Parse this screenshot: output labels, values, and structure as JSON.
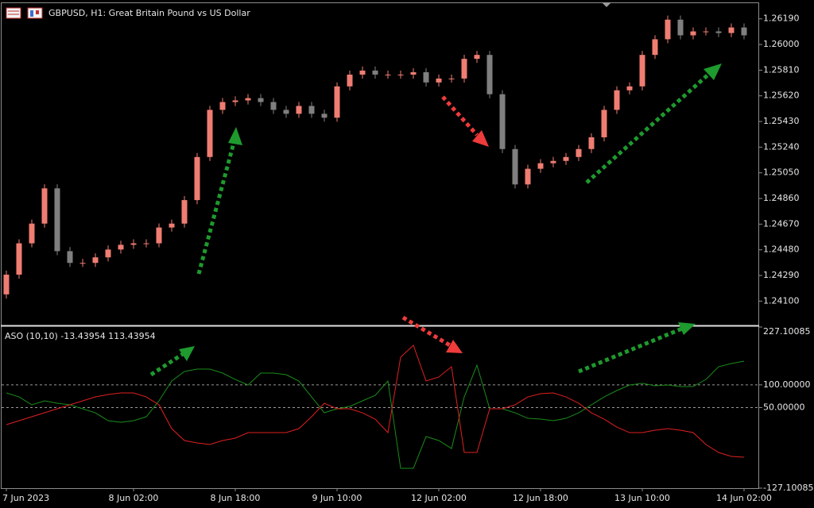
{
  "chart_data": [
    {
      "type": "candlestick",
      "title": "GBPUSD, H1:  Great Britain Pound vs US Dollar",
      "categories": [
        "7 Jun 2023",
        null,
        null,
        null,
        null,
        null,
        null,
        null,
        null,
        null,
        "8 Jun 02:00",
        null,
        null,
        null,
        null,
        null,
        null,
        null,
        "8 Jun 18:00",
        null,
        null,
        null,
        null,
        null,
        null,
        null,
        "9 Jun 10:00",
        null,
        null,
        null,
        null,
        null,
        null,
        null,
        "12 Jun 02:00",
        null,
        null,
        null,
        null,
        null,
        null,
        null,
        "12 Jun 18:00",
        null,
        null,
        null,
        null,
        null,
        null,
        null,
        "13 Jun 10:00",
        null,
        null,
        null,
        null,
        null,
        null,
        null,
        "14 Jun 02:00"
      ],
      "open": [
        1.2415,
        1.24296,
        1.24528,
        1.24674,
        1.24935,
        1.2447,
        1.24383,
        1.24383,
        1.24424,
        1.24482,
        1.24517,
        1.24528,
        1.24528,
        1.24645,
        1.24674,
        1.24848,
        1.25167,
        1.25516,
        1.25574,
        1.25586,
        1.25603,
        1.25574,
        1.25516,
        1.25487,
        1.25545,
        1.25487,
        1.25458,
        1.2569,
        1.25777,
        1.25807,
        1.25777,
        1.25777,
        1.25777,
        1.25795,
        1.25719,
        1.25748,
        1.25748,
        1.25894,
        1.25923,
        1.25632,
        1.25226,
        1.24964,
        1.2508,
        1.25121,
        1.25138,
        1.25167,
        1.25226,
        1.25313,
        1.25516,
        1.25661,
        1.2569,
        1.25923,
        1.26039,
        1.26184,
        1.26068,
        1.26097,
        1.26097,
        1.26085,
        1.26126
      ],
      "high": [
        1.24326,
        1.24558,
        1.24704,
        1.24965,
        1.24965,
        1.245,
        1.24413,
        1.24454,
        1.24512,
        1.24547,
        1.24558,
        1.24558,
        1.24675,
        1.24704,
        1.24878,
        1.25197,
        1.25546,
        1.25604,
        1.25616,
        1.25633,
        1.25633,
        1.25604,
        1.25546,
        1.25575,
        1.25575,
        1.25517,
        1.2572,
        1.25807,
        1.25837,
        1.25837,
        1.25807,
        1.25807,
        1.25825,
        1.25825,
        1.25778,
        1.25778,
        1.25924,
        1.25953,
        1.25953,
        1.25662,
        1.25256,
        1.2511,
        1.25151,
        1.25168,
        1.25197,
        1.25256,
        1.25343,
        1.25546,
        1.25691,
        1.2572,
        1.25953,
        1.26069,
        1.26214,
        1.26214,
        1.26127,
        1.26127,
        1.26127,
        1.26156,
        1.26156
      ],
      "low": [
        1.2412,
        1.24266,
        1.24498,
        1.24644,
        1.2444,
        1.24353,
        1.24353,
        1.24353,
        1.24394,
        1.24452,
        1.24487,
        1.24498,
        1.24498,
        1.24615,
        1.24644,
        1.24818,
        1.25137,
        1.25486,
        1.25544,
        1.25556,
        1.25544,
        1.25486,
        1.25457,
        1.25457,
        1.25457,
        1.25428,
        1.25428,
        1.2566,
        1.25747,
        1.25747,
        1.25747,
        1.25747,
        1.25747,
        1.25689,
        1.25689,
        1.25718,
        1.25718,
        1.25864,
        1.25602,
        1.25196,
        1.24934,
        1.24934,
        1.2505,
        1.25091,
        1.25108,
        1.25137,
        1.25196,
        1.25283,
        1.25486,
        1.25631,
        1.2566,
        1.25893,
        1.26009,
        1.26038,
        1.26038,
        1.26067,
        1.26055,
        1.26055,
        1.26038
      ],
      "close": [
        1.24296,
        1.24528,
        1.24674,
        1.24935,
        1.2447,
        1.24383,
        1.24383,
        1.24424,
        1.24482,
        1.24517,
        1.24528,
        1.24528,
        1.24645,
        1.24674,
        1.24848,
        1.25167,
        1.25516,
        1.25574,
        1.25586,
        1.25603,
        1.25574,
        1.25516,
        1.25487,
        1.25545,
        1.25487,
        1.25458,
        1.2569,
        1.25777,
        1.25807,
        1.25777,
        1.25777,
        1.25777,
        1.25795,
        1.25719,
        1.25748,
        1.25748,
        1.25894,
        1.25923,
        1.25632,
        1.25226,
        1.24964,
        1.2508,
        1.25121,
        1.25138,
        1.25167,
        1.25226,
        1.25313,
        1.25516,
        1.25661,
        1.2569,
        1.25923,
        1.26039,
        1.26184,
        1.26068,
        1.26097,
        1.26097,
        1.26085,
        1.26126,
        1.26068
      ],
      "up_color": "#ef7d72",
      "down_color": "#7f7f7f",
      "ylim": [
        1.2392,
        1.26306
      ],
      "yticks": [
        {
          "value": 1.2619,
          "label": "1.26190"
        },
        {
          "value": 1.26,
          "label": "1.26000"
        },
        {
          "value": 1.2581,
          "label": "1.25810"
        },
        {
          "value": 1.2562,
          "label": "1.25620"
        },
        {
          "value": 1.2543,
          "label": "1.25430"
        },
        {
          "value": 1.2524,
          "label": "1.25240"
        },
        {
          "value": 1.2505,
          "label": "1.25050"
        },
        {
          "value": 1.2486,
          "label": "1.24860"
        },
        {
          "value": 1.2467,
          "label": "1.24670"
        },
        {
          "value": 1.2448,
          "label": "1.24480"
        },
        {
          "value": 1.2429,
          "label": "1.24290"
        },
        {
          "value": 1.241,
          "label": "1.24100"
        }
      ]
    },
    {
      "type": "line",
      "title": "ASO (10,10) -13.43954 113.43954",
      "series": [
        {
          "color": "#1a8c1a",
          "values": [
            82.3,
            73.5,
            56.1,
            64.8,
            59.6,
            56.1,
            47.4,
            38.6,
            21.2,
            17.7,
            21.2,
            29.9,
            64.8,
            108.4,
            129.4,
            134.6,
            134.6,
            125.9,
            111.9,
            99.7,
            125.9,
            125.9,
            122.4,
            108.4,
            73.5,
            38.6,
            47.4,
            52.6,
            64.8,
            77.0,
            108.4,
            -83.5,
            -83.5,
            -13.7,
            -22.4,
            -39.9,
            73.5,
            143.3,
            47.4,
            47.4,
            38.6,
            26.4,
            24.7,
            21.2,
            26.4,
            38.6,
            56.1,
            73.5,
            87.5,
            99.7,
            103.2,
            98.0,
            99.7,
            96.2,
            96.2,
            111.9,
            139.8,
            146.8,
            152.1
          ]
        },
        {
          "color": "#e02020",
          "values": [
            12.5,
            21.2,
            29.9,
            38.6,
            47.4,
            56.1,
            64.8,
            73.5,
            78.8,
            82.3,
            82.3,
            73.5,
            56.1,
            3.7,
            -22.4,
            -27.7,
            -31.2,
            -22.4,
            -17.2,
            -5.0,
            -5.0,
            -5.0,
            -5.0,
            3.7,
            29.9,
            59.6,
            47.4,
            47.4,
            38.6,
            24.7,
            -5.0,
            160.8,
            187.0,
            108.4,
            117.2,
            139.8,
            -48.6,
            -48.6,
            47.4,
            47.4,
            56.1,
            73.5,
            80.5,
            82.3,
            73.5,
            59.6,
            38.6,
            24.7,
            7.2,
            -5.0,
            -5.0,
            0.2,
            3.7,
            0.2,
            -5.0,
            -31.2,
            -48.6,
            -57.3,
            -59.1
          ]
        }
      ],
      "ylim": [
        -127.10085,
        227.10085
      ],
      "yticks": [
        {
          "value": 227.10085,
          "label": "227.10085"
        },
        {
          "value": 100,
          "label": "100.00000"
        },
        {
          "value": 50,
          "label": "50.00000"
        },
        {
          "value": -127.10085,
          "label": "-127.10085"
        }
      ],
      "grid": true
    }
  ]
}
